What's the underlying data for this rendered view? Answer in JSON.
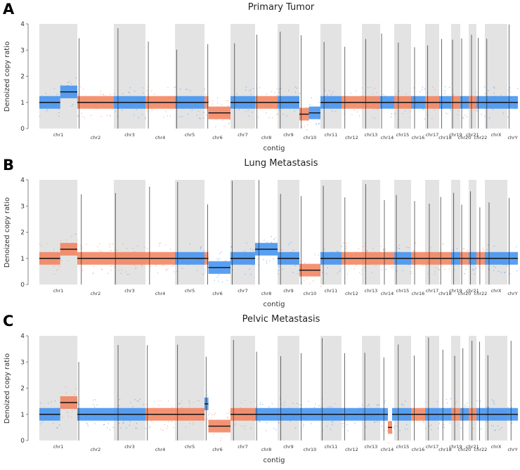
{
  "chart_data": [
    {
      "type": "scatter",
      "panel_label": "A",
      "title": "Primary Tumor",
      "xlabel": "contig",
      "ylabel": "Denoized copy ratio",
      "ylim": [
        0,
        4
      ],
      "yticks": [
        "0",
        "1",
        "2",
        "3",
        "4"
      ],
      "chromosomes": [
        "chr1",
        "chr2",
        "chr3",
        "chr4",
        "chr5",
        "chr6",
        "chr7",
        "chr8",
        "chr9",
        "chr10",
        "chr11",
        "chr12",
        "chr13",
        "chr14",
        "chr15",
        "chr16",
        "chr17",
        "chr18",
        "chr19",
        "chr20",
        "chr21",
        "chr22",
        "chrX",
        "chrY"
      ],
      "segments": [
        {
          "chr": "chr1",
          "y": 1.0,
          "color": "blue",
          "x0": 0.0,
          "x1": 0.55
        },
        {
          "chr": "chr1",
          "y": 1.4,
          "color": "blue",
          "x0": 0.55,
          "x1": 1.0
        },
        {
          "chr": "chr2",
          "y": 1.0,
          "color": "orange"
        },
        {
          "chr": "chr3",
          "y": 1.0,
          "color": "blue"
        },
        {
          "chr": "chr4",
          "y": 1.0,
          "color": "orange"
        },
        {
          "chr": "chr5",
          "y": 1.0,
          "color": "blue"
        },
        {
          "chr": "chr6",
          "y": 1.0,
          "color": "orange",
          "x0": 0.0,
          "x1": 0.15
        },
        {
          "chr": "chr6",
          "y": 0.6,
          "color": "orange",
          "x0": 0.15,
          "x1": 1.0
        },
        {
          "chr": "chr7",
          "y": 1.0,
          "color": "blue"
        },
        {
          "chr": "chr8",
          "y": 1.0,
          "color": "orange"
        },
        {
          "chr": "chr9",
          "y": 1.0,
          "color": "blue"
        },
        {
          "chr": "chr10",
          "y": 0.55,
          "color": "orange",
          "x0": 0.0,
          "x1": 0.45
        },
        {
          "chr": "chr10",
          "y": 0.6,
          "color": "blue",
          "x0": 0.45,
          "x1": 1.0
        },
        {
          "chr": "chr11",
          "y": 1.0,
          "color": "blue"
        },
        {
          "chr": "chr12",
          "y": 1.0,
          "color": "orange"
        },
        {
          "chr": "chr13",
          "y": 1.0,
          "color": "orange"
        },
        {
          "chr": "chr14",
          "y": 1.0,
          "color": "blue"
        },
        {
          "chr": "chr15",
          "y": 1.0,
          "color": "orange"
        },
        {
          "chr": "chr16",
          "y": 1.0,
          "color": "blue"
        },
        {
          "chr": "chr17",
          "y": 1.0,
          "color": "orange"
        },
        {
          "chr": "chr18",
          "y": 1.0,
          "color": "blue"
        },
        {
          "chr": "chr19",
          "y": 1.0,
          "color": "orange"
        },
        {
          "chr": "chr20",
          "y": 1.0,
          "color": "blue"
        },
        {
          "chr": "chr21",
          "y": 1.0,
          "color": "orange"
        },
        {
          "chr": "chr22",
          "y": 1.0,
          "color": "blue"
        },
        {
          "chr": "chrX",
          "y": 1.0,
          "color": "blue"
        },
        {
          "chr": "chrY",
          "y": 1.0,
          "color": "blue"
        }
      ]
    },
    {
      "type": "scatter",
      "panel_label": "B",
      "title": "Lung Metastasis",
      "xlabel": "contig",
      "ylabel": "Denoized copy ratio",
      "ylim": [
        0,
        4
      ],
      "yticks": [
        "0",
        "1",
        "2",
        "3",
        "4"
      ],
      "chromosomes": [
        "chr1",
        "chr2",
        "chr3",
        "chr4",
        "chr5",
        "chr6",
        "chr7",
        "chr8",
        "chr9",
        "chr10",
        "chr11",
        "chr12",
        "chr13",
        "chr14",
        "chr15",
        "chr16",
        "chr17",
        "chr18",
        "chr19",
        "chr20",
        "chr21",
        "chr22",
        "chrX",
        "chrY"
      ],
      "segments": [
        {
          "chr": "chr1",
          "y": 1.0,
          "color": "orange",
          "x0": 0.0,
          "x1": 0.55
        },
        {
          "chr": "chr1",
          "y": 1.35,
          "color": "orange",
          "x0": 0.55,
          "x1": 1.0
        },
        {
          "chr": "chr2",
          "y": 1.0,
          "color": "orange"
        },
        {
          "chr": "chr3",
          "y": 1.0,
          "color": "orange"
        },
        {
          "chr": "chr4",
          "y": 1.0,
          "color": "orange"
        },
        {
          "chr": "chr5",
          "y": 1.0,
          "color": "blue"
        },
        {
          "chr": "chr6",
          "y": 1.0,
          "color": "orange",
          "x0": 0.0,
          "x1": 0.15
        },
        {
          "chr": "chr6",
          "y": 0.65,
          "color": "blue",
          "x0": 0.15,
          "x1": 1.0
        },
        {
          "chr": "chr7",
          "y": 1.0,
          "color": "blue"
        },
        {
          "chr": "chr8",
          "y": 1.35,
          "color": "blue"
        },
        {
          "chr": "chr9",
          "y": 1.0,
          "color": "blue"
        },
        {
          "chr": "chr10",
          "y": 0.55,
          "color": "orange"
        },
        {
          "chr": "chr11",
          "y": 1.0,
          "color": "blue"
        },
        {
          "chr": "chr12",
          "y": 1.0,
          "color": "orange"
        },
        {
          "chr": "chr13",
          "y": 1.0,
          "color": "orange"
        },
        {
          "chr": "chr14",
          "y": 1.0,
          "color": "orange"
        },
        {
          "chr": "chr15",
          "y": 1.0,
          "color": "blue"
        },
        {
          "chr": "chr16",
          "y": 1.0,
          "color": "orange"
        },
        {
          "chr": "chr17",
          "y": 1.0,
          "color": "orange"
        },
        {
          "chr": "chr18",
          "y": 1.0,
          "color": "orange"
        },
        {
          "chr": "chr19",
          "y": 1.0,
          "color": "blue"
        },
        {
          "chr": "chr20",
          "y": 1.0,
          "color": "orange"
        },
        {
          "chr": "chr21",
          "y": 1.0,
          "color": "blue"
        },
        {
          "chr": "chr22",
          "y": 1.0,
          "color": "orange"
        },
        {
          "chr": "chrX",
          "y": 1.0,
          "color": "blue"
        },
        {
          "chr": "chrY",
          "y": 1.0,
          "color": "blue"
        }
      ]
    },
    {
      "type": "scatter",
      "panel_label": "C",
      "title": "Pelvic Metastasis",
      "xlabel": "contig",
      "ylabel": "Denoized copy ratio",
      "ylim": [
        0,
        4
      ],
      "yticks": [
        "0",
        "1",
        "2",
        "3",
        "4"
      ],
      "chromosomes": [
        "chr1",
        "chr2",
        "chr3",
        "chr4",
        "chr5",
        "chr6",
        "chr7",
        "chr8",
        "chr9",
        "chr10",
        "chr11",
        "chr12",
        "chr13",
        "chr14",
        "chr15",
        "chr16",
        "chr17",
        "chr18",
        "chr19",
        "chr20",
        "chr21",
        "chr22",
        "chrX",
        "chrY"
      ],
      "segments": [
        {
          "chr": "chr1",
          "y": 1.0,
          "color": "blue",
          "x0": 0.0,
          "x1": 0.55
        },
        {
          "chr": "chr1",
          "y": 1.45,
          "color": "orange",
          "x0": 0.55,
          "x1": 1.0
        },
        {
          "chr": "chr2",
          "y": 1.0,
          "color": "blue"
        },
        {
          "chr": "chr3",
          "y": 1.0,
          "color": "blue"
        },
        {
          "chr": "chr4",
          "y": 1.0,
          "color": "orange"
        },
        {
          "chr": "chr5",
          "y": 1.0,
          "color": "orange"
        },
        {
          "chr": "chr6",
          "y": 1.4,
          "color": "blue",
          "x0": 0.0,
          "x1": 0.15
        },
        {
          "chr": "chr6",
          "y": 0.55,
          "color": "orange",
          "x0": 0.15,
          "x1": 1.0
        },
        {
          "chr": "chr7",
          "y": 1.0,
          "color": "orange"
        },
        {
          "chr": "chr8",
          "y": 1.0,
          "color": "blue"
        },
        {
          "chr": "chr9",
          "y": 1.0,
          "color": "blue"
        },
        {
          "chr": "chr10",
          "y": 1.0,
          "color": "blue"
        },
        {
          "chr": "chr11",
          "y": 1.0,
          "color": "blue"
        },
        {
          "chr": "chr12",
          "y": 1.0,
          "color": "blue"
        },
        {
          "chr": "chr13",
          "y": 1.0,
          "color": "blue"
        },
        {
          "chr": "chr14",
          "y": 1.0,
          "color": "blue",
          "x0": 0.0,
          "x1": 0.55
        },
        {
          "chr": "chr14",
          "y": 0.5,
          "color": "orange",
          "x0": 0.55,
          "x1": 0.85
        },
        {
          "chr": "chr14",
          "y": 1.0,
          "color": "blue",
          "x0": 0.85,
          "x1": 1.0
        },
        {
          "chr": "chr15",
          "y": 1.0,
          "color": "blue"
        },
        {
          "chr": "chr16",
          "y": 1.0,
          "color": "orange"
        },
        {
          "chr": "chr17",
          "y": 1.0,
          "color": "blue"
        },
        {
          "chr": "chr18",
          "y": 1.0,
          "color": "blue"
        },
        {
          "chr": "chr19",
          "y": 1.0,
          "color": "orange"
        },
        {
          "chr": "chr20",
          "y": 1.0,
          "color": "blue"
        },
        {
          "chr": "chr21",
          "y": 1.0,
          "color": "orange"
        },
        {
          "chr": "chr22",
          "y": 1.0,
          "color": "blue"
        },
        {
          "chr": "chrX",
          "y": 1.0,
          "color": "blue"
        },
        {
          "chr": "chrY",
          "y": 1.0,
          "color": "blue"
        }
      ]
    }
  ],
  "colors": {
    "blue": "#3d8ff0",
    "orange": "#f2805a",
    "shade": "#e3e3e3",
    "segment": "#111111"
  }
}
